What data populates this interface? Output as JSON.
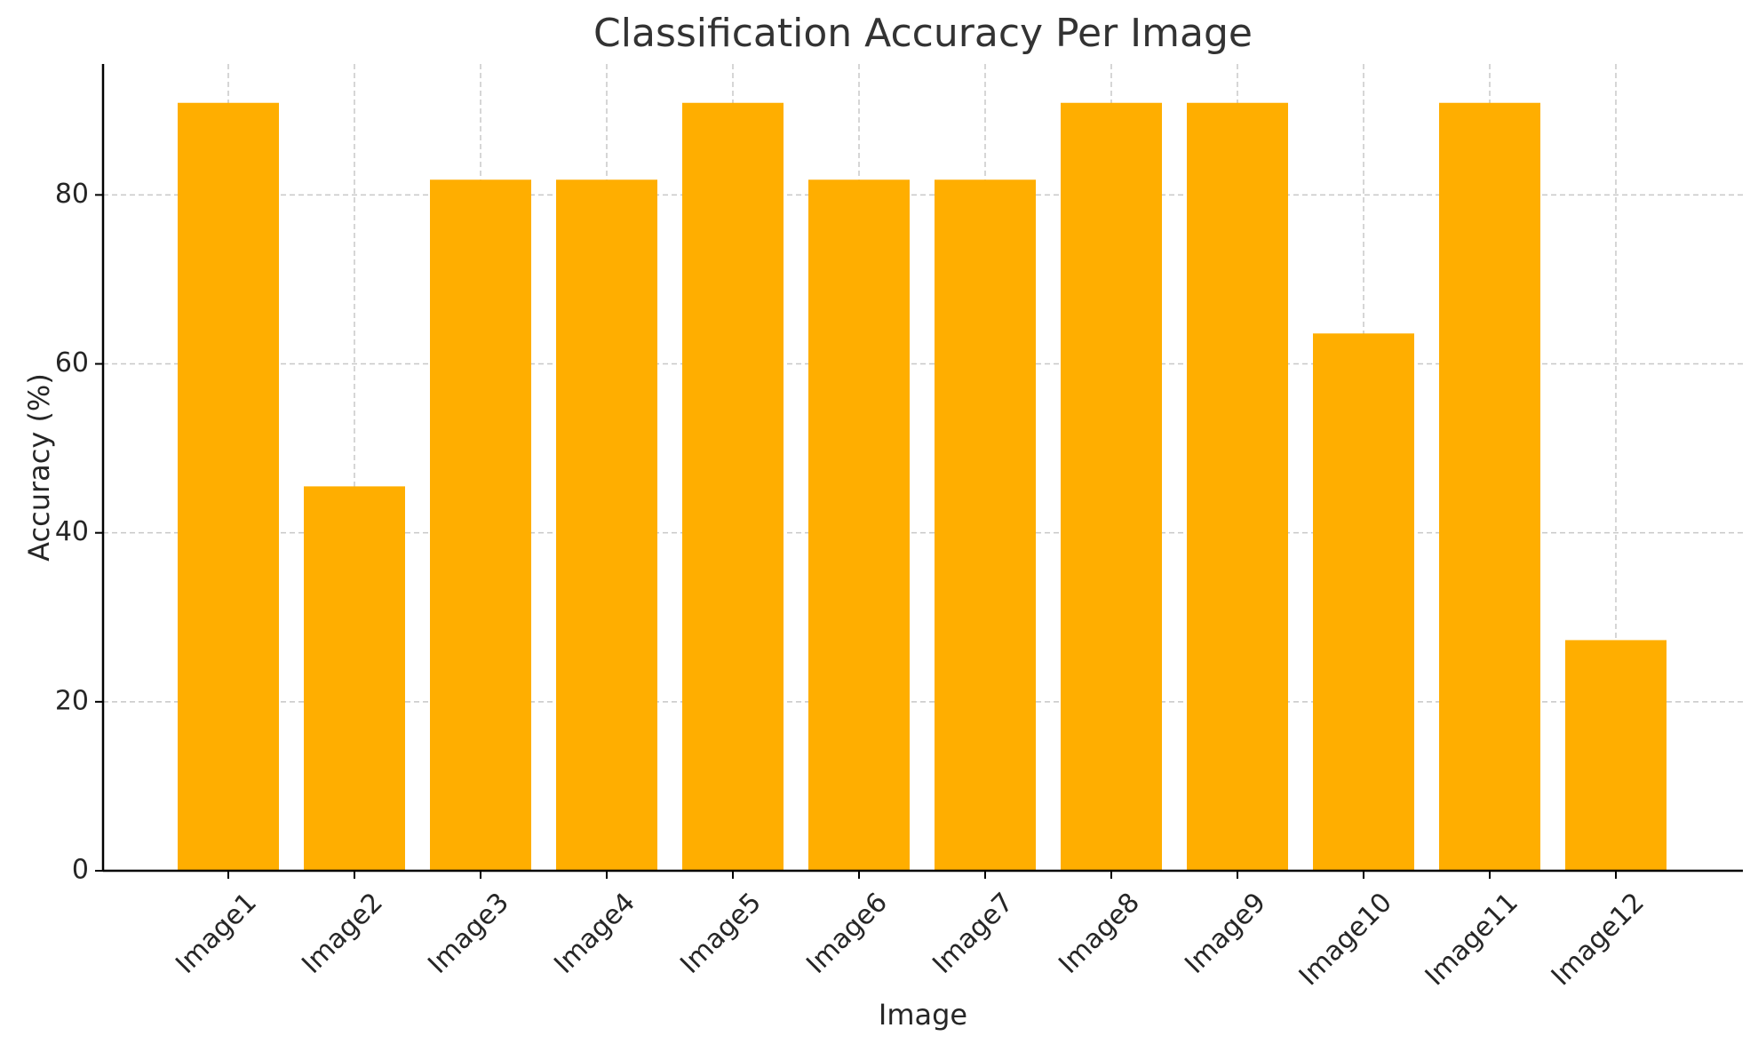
{
  "chart_data": {
    "type": "bar",
    "title": "Classification Accuracy Per Image",
    "xlabel": "Image",
    "ylabel": "Accuracy (%)",
    "categories": [
      "Image1",
      "Image2",
      "Image3",
      "Image4",
      "Image5",
      "Image6",
      "Image7",
      "Image8",
      "Image9",
      "Image10",
      "Image11",
      "Image12"
    ],
    "values": [
      90.9,
      45.5,
      81.8,
      81.8,
      90.9,
      81.8,
      81.8,
      90.9,
      90.9,
      63.6,
      90.9,
      27.3
    ],
    "ylim": [
      0,
      95.5
    ],
    "yticks": [
      0,
      20,
      40,
      60,
      80
    ],
    "grid": true,
    "bar_color": "#FFAE00"
  }
}
